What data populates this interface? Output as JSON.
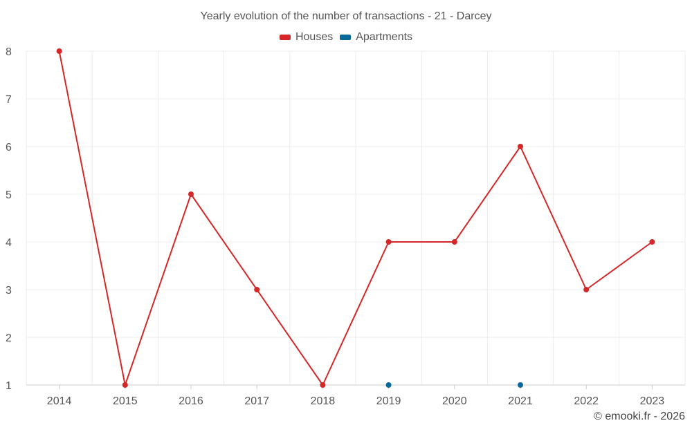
{
  "chart_data": {
    "type": "line",
    "title": "Yearly evolution of the number of transactions - 21 - Darcey",
    "categories": [
      "2014",
      "2015",
      "2016",
      "2017",
      "2018",
      "2019",
      "2020",
      "2021",
      "2022",
      "2023"
    ],
    "series": [
      {
        "name": "Houses",
        "color": "#d62728",
        "values": [
          8,
          1,
          5,
          3,
          1,
          4,
          4,
          6,
          3,
          4
        ]
      },
      {
        "name": "Apartments",
        "color": "#08699b",
        "values": [
          null,
          null,
          null,
          null,
          null,
          1,
          null,
          1,
          null,
          null
        ]
      }
    ],
    "ylim": [
      1,
      8
    ],
    "yticks": [
      "1",
      "2",
      "3",
      "4",
      "5",
      "6",
      "7",
      "8"
    ],
    "xlabel": "",
    "ylabel": "",
    "grid": true,
    "legend": "top-center"
  },
  "footer": {
    "credit": "© emooki.fr - 2026"
  }
}
